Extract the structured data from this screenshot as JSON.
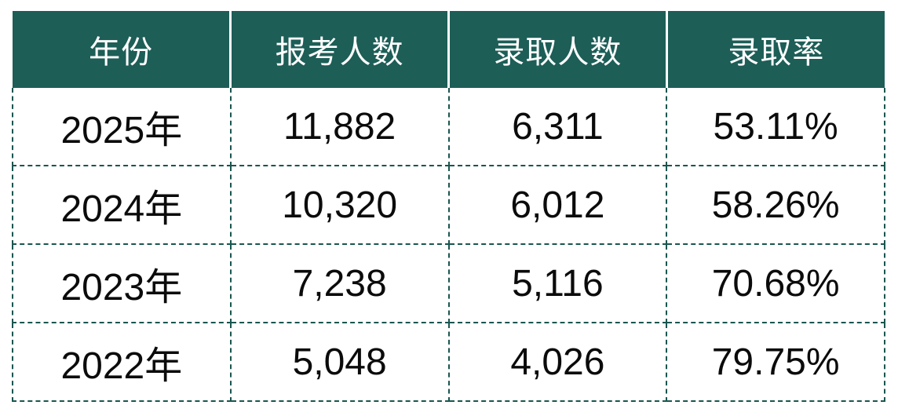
{
  "chart_data": {
    "type": "table",
    "columns": [
      "年份",
      "报考人数",
      "录取人数",
      "录取率"
    ],
    "rows": [
      [
        "2025年",
        "11,882",
        "6,311",
        "53.11%"
      ],
      [
        "2024年",
        "10,320",
        "6,012",
        "58.26%"
      ],
      [
        "2023年",
        "7,238",
        "5,116",
        "70.68%"
      ],
      [
        "2022年",
        "5,048",
        "4,026",
        "79.75%"
      ]
    ],
    "layout": {
      "header_style": "solid fill, white column separators",
      "body_style": "white cells, dashed grid borders",
      "text_align": "center"
    }
  },
  "colors": {
    "header_bg": "#1D5E57",
    "header_text": "#FFFFFF",
    "body_text": "#0B0B0B",
    "dashed_border": "#19564F",
    "background": "#FFFFFF"
  }
}
